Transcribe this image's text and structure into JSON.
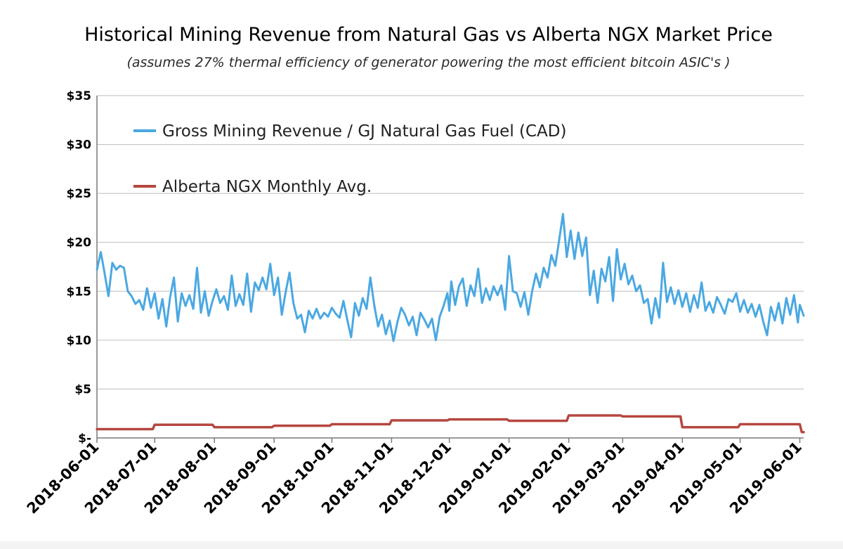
{
  "chart_data": {
    "type": "line",
    "title": "Historical Mining Revenue from Natural Gas vs Alberta NGX  Market Price",
    "subtitle": "(assumes 27% thermal efficiency of generator powering  the most efficient bitcoin ASIC's )",
    "xlabel": "",
    "ylabel": "",
    "x_range": [
      "2018-06-01",
      "2019-06-03"
    ],
    "x_tick_labels": [
      "2018-06-01",
      "2018-07-01",
      "2018-08-01",
      "2018-09-01",
      "2018-10-01",
      "2018-11-01",
      "2018-12-01",
      "2019-01-01",
      "2019-02-01",
      "2019-03-01",
      "2019-04-01",
      "2019-05-01",
      "2019-06-01"
    ],
    "ylim": [
      0,
      35
    ],
    "y_ticks": [
      0,
      5,
      10,
      15,
      20,
      25,
      30,
      35
    ],
    "y_tick_labels": [
      "$-",
      "$5",
      "$10",
      "$15",
      "$20",
      "$25",
      "$30",
      "$35"
    ],
    "grid": true,
    "legend_placement": "top-left",
    "series": [
      {
        "name": "Gross Mining Revenue / GJ Natural Gas Fuel (CAD)",
        "color": "#4aa8e2",
        "points": [
          [
            "2018-06-01",
            17.2
          ],
          [
            "2018-06-03",
            19.0
          ],
          [
            "2018-06-05",
            16.8
          ],
          [
            "2018-06-07",
            14.5
          ],
          [
            "2018-06-09",
            17.9
          ],
          [
            "2018-06-11",
            17.2
          ],
          [
            "2018-06-13",
            17.6
          ],
          [
            "2018-06-15",
            17.4
          ],
          [
            "2018-06-17",
            15.0
          ],
          [
            "2018-06-19",
            14.5
          ],
          [
            "2018-06-21",
            13.7
          ],
          [
            "2018-06-23",
            14.1
          ],
          [
            "2018-06-25",
            13.1
          ],
          [
            "2018-06-27",
            15.3
          ],
          [
            "2018-06-29",
            13.3
          ],
          [
            "2018-07-01",
            14.8
          ],
          [
            "2018-07-03",
            12.2
          ],
          [
            "2018-07-05",
            14.2
          ],
          [
            "2018-07-07",
            11.4
          ],
          [
            "2018-07-09",
            14.4
          ],
          [
            "2018-07-11",
            16.4
          ],
          [
            "2018-07-13",
            11.9
          ],
          [
            "2018-07-15",
            14.8
          ],
          [
            "2018-07-17",
            13.5
          ],
          [
            "2018-07-19",
            14.6
          ],
          [
            "2018-07-21",
            13.2
          ],
          [
            "2018-07-23",
            17.4
          ],
          [
            "2018-07-25",
            12.8
          ],
          [
            "2018-07-27",
            15.0
          ],
          [
            "2018-07-29",
            12.5
          ],
          [
            "2018-07-31",
            14.0
          ],
          [
            "2018-08-02",
            15.2
          ],
          [
            "2018-08-04",
            13.8
          ],
          [
            "2018-08-06",
            14.5
          ],
          [
            "2018-08-08",
            13.1
          ],
          [
            "2018-08-10",
            16.6
          ],
          [
            "2018-08-12",
            13.5
          ],
          [
            "2018-08-14",
            14.7
          ],
          [
            "2018-08-16",
            13.6
          ],
          [
            "2018-08-18",
            16.8
          ],
          [
            "2018-08-20",
            12.9
          ],
          [
            "2018-08-22",
            15.9
          ],
          [
            "2018-08-24",
            15.1
          ],
          [
            "2018-08-26",
            16.4
          ],
          [
            "2018-08-28",
            15.2
          ],
          [
            "2018-08-30",
            17.8
          ],
          [
            "2018-09-01",
            14.6
          ],
          [
            "2018-09-03",
            16.4
          ],
          [
            "2018-09-05",
            12.6
          ],
          [
            "2018-09-07",
            14.9
          ],
          [
            "2018-09-09",
            16.9
          ],
          [
            "2018-09-11",
            13.8
          ],
          [
            "2018-09-13",
            12.2
          ],
          [
            "2018-09-15",
            12.6
          ],
          [
            "2018-09-17",
            10.8
          ],
          [
            "2018-09-19",
            13.0
          ],
          [
            "2018-09-21",
            12.2
          ],
          [
            "2018-09-23",
            13.2
          ],
          [
            "2018-09-25",
            12.2
          ],
          [
            "2018-09-27",
            12.8
          ],
          [
            "2018-09-29",
            12.4
          ],
          [
            "2018-10-01",
            13.3
          ],
          [
            "2018-10-03",
            12.7
          ],
          [
            "2018-10-05",
            12.3
          ],
          [
            "2018-10-07",
            14.0
          ],
          [
            "2018-10-09",
            12.1
          ],
          [
            "2018-10-11",
            10.3
          ],
          [
            "2018-10-13",
            13.8
          ],
          [
            "2018-10-15",
            12.5
          ],
          [
            "2018-10-17",
            14.3
          ],
          [
            "2018-10-19",
            13.2
          ],
          [
            "2018-10-21",
            16.4
          ],
          [
            "2018-10-23",
            13.6
          ],
          [
            "2018-10-25",
            11.4
          ],
          [
            "2018-10-27",
            12.6
          ],
          [
            "2018-10-29",
            10.6
          ],
          [
            "2018-10-31",
            12.0
          ],
          [
            "2018-11-02",
            9.9
          ],
          [
            "2018-11-04",
            11.8
          ],
          [
            "2018-11-06",
            13.3
          ],
          [
            "2018-11-08",
            12.6
          ],
          [
            "2018-11-10",
            11.5
          ],
          [
            "2018-11-12",
            12.4
          ],
          [
            "2018-11-14",
            10.5
          ],
          [
            "2018-11-16",
            12.8
          ],
          [
            "2018-11-18",
            12.1
          ],
          [
            "2018-11-20",
            11.3
          ],
          [
            "2018-11-22",
            12.2
          ],
          [
            "2018-11-24",
            10.0
          ],
          [
            "2018-11-26",
            12.4
          ],
          [
            "2018-11-28",
            13.5
          ],
          [
            "2018-11-30",
            14.8
          ],
          [
            "2018-12-01",
            13.0
          ],
          [
            "2018-12-02",
            16.0
          ],
          [
            "2018-12-04",
            13.6
          ],
          [
            "2018-12-06",
            15.5
          ],
          [
            "2018-12-08",
            16.3
          ],
          [
            "2018-12-10",
            13.5
          ],
          [
            "2018-12-12",
            15.6
          ],
          [
            "2018-12-14",
            14.5
          ],
          [
            "2018-12-16",
            17.3
          ],
          [
            "2018-12-18",
            13.8
          ],
          [
            "2018-12-20",
            15.3
          ],
          [
            "2018-12-22",
            14.1
          ],
          [
            "2018-12-24",
            15.5
          ],
          [
            "2018-12-26",
            14.6
          ],
          [
            "2018-12-28",
            15.6
          ],
          [
            "2018-12-30",
            13.1
          ],
          [
            "2019-01-01",
            18.6
          ],
          [
            "2019-01-03",
            15.0
          ],
          [
            "2019-01-05",
            14.8
          ],
          [
            "2019-01-07",
            13.4
          ],
          [
            "2019-01-09",
            14.9
          ],
          [
            "2019-01-11",
            12.6
          ],
          [
            "2019-01-13",
            15.0
          ],
          [
            "2019-01-15",
            16.8
          ],
          [
            "2019-01-17",
            15.4
          ],
          [
            "2019-01-19",
            17.4
          ],
          [
            "2019-01-21",
            16.4
          ],
          [
            "2019-01-23",
            18.7
          ],
          [
            "2019-01-25",
            17.6
          ],
          [
            "2019-01-27",
            20.2
          ],
          [
            "2019-01-29",
            22.9
          ],
          [
            "2019-01-31",
            18.5
          ],
          [
            "2019-02-02",
            21.2
          ],
          [
            "2019-02-04",
            18.3
          ],
          [
            "2019-02-06",
            21.0
          ],
          [
            "2019-02-08",
            18.6
          ],
          [
            "2019-02-10",
            20.5
          ],
          [
            "2019-02-12",
            14.6
          ],
          [
            "2019-02-14",
            17.1
          ],
          [
            "2019-02-16",
            13.8
          ],
          [
            "2019-02-18",
            17.3
          ],
          [
            "2019-02-20",
            16.0
          ],
          [
            "2019-02-22",
            18.5
          ],
          [
            "2019-02-24",
            14.0
          ],
          [
            "2019-02-26",
            19.3
          ],
          [
            "2019-02-28",
            16.2
          ],
          [
            "2019-03-02",
            17.8
          ],
          [
            "2019-03-04",
            15.7
          ],
          [
            "2019-03-06",
            16.6
          ],
          [
            "2019-03-08",
            15.0
          ],
          [
            "2019-03-10",
            15.6
          ],
          [
            "2019-03-12",
            13.8
          ],
          [
            "2019-03-14",
            14.2
          ],
          [
            "2019-03-16",
            11.7
          ],
          [
            "2019-03-18",
            14.3
          ],
          [
            "2019-03-20",
            12.3
          ],
          [
            "2019-03-22",
            17.9
          ],
          [
            "2019-03-24",
            13.9
          ],
          [
            "2019-03-26",
            15.4
          ],
          [
            "2019-03-28",
            13.7
          ],
          [
            "2019-03-30",
            15.1
          ],
          [
            "2019-04-01",
            13.4
          ],
          [
            "2019-04-03",
            14.8
          ],
          [
            "2019-04-05",
            12.9
          ],
          [
            "2019-04-07",
            14.6
          ],
          [
            "2019-04-09",
            13.3
          ],
          [
            "2019-04-11",
            15.9
          ],
          [
            "2019-04-13",
            13.0
          ],
          [
            "2019-04-15",
            13.9
          ],
          [
            "2019-04-17",
            12.8
          ],
          [
            "2019-04-19",
            14.4
          ],
          [
            "2019-04-21",
            13.6
          ],
          [
            "2019-04-23",
            12.7
          ],
          [
            "2019-04-25",
            14.2
          ],
          [
            "2019-04-27",
            13.9
          ],
          [
            "2019-04-29",
            14.8
          ],
          [
            "2019-05-01",
            12.9
          ],
          [
            "2019-05-03",
            14.1
          ],
          [
            "2019-05-05",
            12.8
          ],
          [
            "2019-05-07",
            13.7
          ],
          [
            "2019-05-09",
            12.4
          ],
          [
            "2019-05-11",
            13.6
          ],
          [
            "2019-05-13",
            11.9
          ],
          [
            "2019-05-15",
            10.5
          ],
          [
            "2019-05-17",
            13.4
          ],
          [
            "2019-05-19",
            12.0
          ],
          [
            "2019-05-21",
            13.8
          ],
          [
            "2019-05-23",
            11.7
          ],
          [
            "2019-05-25",
            14.3
          ],
          [
            "2019-05-27",
            12.6
          ],
          [
            "2019-05-29",
            14.6
          ],
          [
            "2019-05-31",
            11.8
          ],
          [
            "2019-06-01",
            13.6
          ],
          [
            "2019-06-03",
            12.5
          ]
        ]
      },
      {
        "name": "Alberta NGX Monthly Avg.",
        "color": "#b5473f",
        "points": [
          [
            "2018-06-01",
            0.9
          ],
          [
            "2018-06-30",
            0.9
          ],
          [
            "2018-07-01",
            1.35
          ],
          [
            "2018-07-31",
            1.35
          ],
          [
            "2018-08-01",
            1.1
          ],
          [
            "2018-08-31",
            1.1
          ],
          [
            "2018-09-01",
            1.25
          ],
          [
            "2018-09-30",
            1.25
          ],
          [
            "2018-10-01",
            1.4
          ],
          [
            "2018-10-31",
            1.4
          ],
          [
            "2018-11-01",
            1.8
          ],
          [
            "2018-11-30",
            1.8
          ],
          [
            "2018-12-01",
            1.9
          ],
          [
            "2018-12-31",
            1.9
          ],
          [
            "2019-01-01",
            1.75
          ],
          [
            "2019-01-31",
            1.75
          ],
          [
            "2019-02-01",
            2.3
          ],
          [
            "2019-02-28",
            2.3
          ],
          [
            "2019-03-01",
            2.2
          ],
          [
            "2019-03-31",
            2.2
          ],
          [
            "2019-04-01",
            1.1
          ],
          [
            "2019-04-30",
            1.1
          ],
          [
            "2019-05-01",
            1.4
          ],
          [
            "2019-05-31",
            1.4
          ],
          [
            "2019-06-01",
            1.4
          ],
          [
            "2019-06-02",
            0.6
          ],
          [
            "2019-06-03",
            0.6
          ]
        ]
      }
    ]
  }
}
